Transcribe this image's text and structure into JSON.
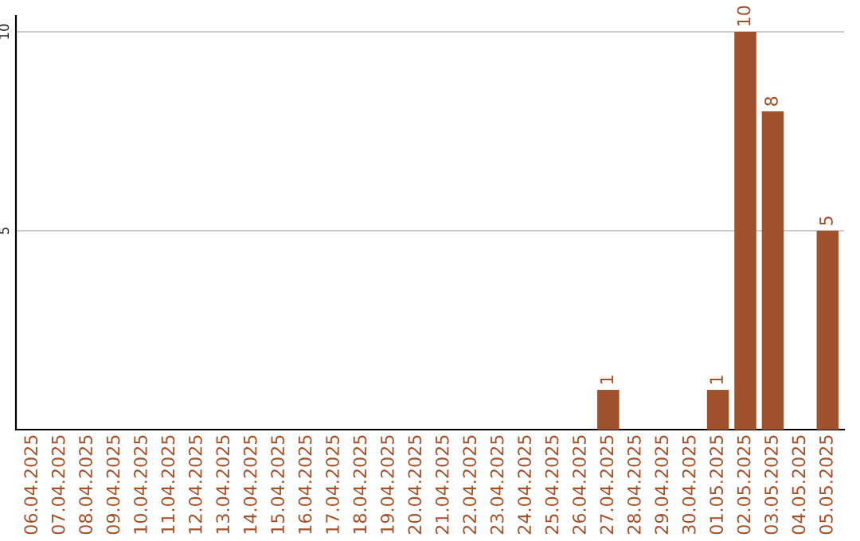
{
  "chart_data": {
    "type": "bar",
    "categories": [
      "06.04.2025",
      "07.04.2025",
      "08.04.2025",
      "09.04.2025",
      "10.04.2025",
      "11.04.2025",
      "12.04.2025",
      "13.04.2025",
      "14.04.2025",
      "15.04.2025",
      "16.04.2025",
      "17.04.2025",
      "18.04.2025",
      "19.04.2025",
      "20.04.2025",
      "21.04.2025",
      "22.04.2025",
      "23.04.2025",
      "24.04.2025",
      "25.04.2025",
      "26.04.2025",
      "27.04.2025",
      "28.04.2025",
      "29.04.2025",
      "30.04.2025",
      "01.05.2025",
      "02.05.2025",
      "03.05.2025",
      "04.05.2025",
      "05.05.2025"
    ],
    "values": [
      0,
      0,
      0,
      0,
      0,
      0,
      0,
      0,
      0,
      0,
      0,
      0,
      0,
      0,
      0,
      0,
      0,
      0,
      0,
      0,
      0,
      1,
      0,
      0,
      0,
      1,
      10,
      8,
      0,
      5
    ],
    "value_labels": [
      null,
      null,
      null,
      null,
      null,
      null,
      null,
      null,
      null,
      null,
      null,
      null,
      null,
      null,
      null,
      null,
      null,
      null,
      null,
      null,
      null,
      "1",
      null,
      null,
      null,
      "1",
      "10",
      "8",
      null,
      "5"
    ],
    "color": "#a0522d",
    "ylim": [
      0,
      10.4
    ],
    "yticks": [
      5,
      10
    ],
    "grid": "y",
    "legend": false
  }
}
